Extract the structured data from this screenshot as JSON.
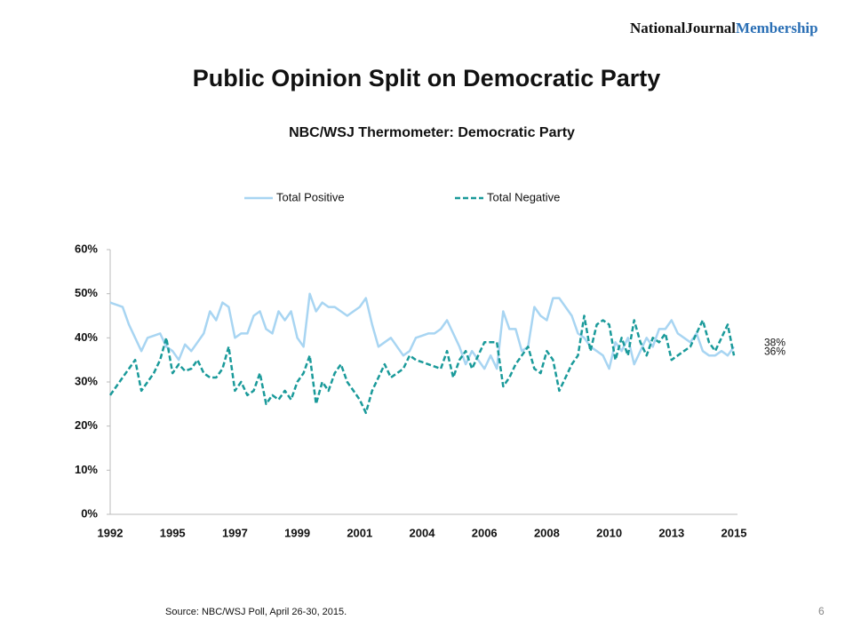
{
  "brand": {
    "name": "NationalJournal",
    "suffix": "Membership"
  },
  "slide_title": "Public Opinion Split on Democratic Party",
  "source": "Source: NBC/WSJ Poll, April 26-30, 2015.",
  "page_number": "6",
  "chart_data": {
    "type": "line",
    "title": "NBC/WSJ Thermometer: Democratic Party",
    "legend": "top",
    "categories": [
      "1992",
      null,
      null,
      null,
      null,
      null,
      null,
      null,
      null,
      null,
      "1995",
      null,
      null,
      null,
      null,
      null,
      null,
      null,
      null,
      null,
      "1997",
      null,
      null,
      null,
      null,
      null,
      null,
      null,
      null,
      null,
      "1999",
      null,
      null,
      null,
      null,
      null,
      null,
      null,
      null,
      null,
      "2001",
      null,
      null,
      null,
      null,
      null,
      null,
      null,
      null,
      null,
      "2004",
      null,
      null,
      null,
      null,
      null,
      null,
      null,
      null,
      null,
      "2006",
      null,
      null,
      null,
      null,
      null,
      null,
      null,
      null,
      null,
      "2008",
      null,
      null,
      null,
      null,
      null,
      null,
      null,
      null,
      null,
      "2010",
      null,
      null,
      null,
      null,
      null,
      null,
      null,
      null,
      null,
      "2013",
      null,
      null,
      null,
      null,
      null,
      null,
      null,
      null,
      null,
      "2015"
    ],
    "series": [
      {
        "name": "Total Positive",
        "color": "#a8d5f2",
        "dash": false,
        "values": [
          48,
          47.5,
          47,
          43,
          40,
          37,
          40,
          40.5,
          41,
          38,
          37,
          35,
          38.5,
          37,
          39,
          41,
          46,
          44,
          48,
          47,
          40,
          41,
          41,
          45,
          46,
          42,
          41,
          46,
          44,
          46,
          40,
          38,
          50,
          46,
          48,
          47,
          47,
          46,
          45,
          46,
          47,
          49,
          43,
          38,
          39,
          40,
          38,
          36,
          37,
          40,
          40.5,
          41,
          41,
          42,
          44,
          41,
          38,
          34,
          37,
          35,
          33,
          36,
          33,
          46,
          42,
          42,
          37,
          38,
          47,
          45,
          44,
          49,
          49,
          47,
          45,
          41,
          40,
          38,
          37,
          36,
          33,
          39,
          37,
          40,
          34,
          37,
          40,
          38,
          42,
          42,
          44,
          41,
          40,
          39,
          41,
          37,
          36,
          36,
          37,
          36,
          38
        ],
        "value_labels": [
          null,
          null,
          null,
          null,
          null,
          null,
          null,
          null,
          null,
          null,
          null,
          null,
          null,
          null,
          null,
          null,
          null,
          null,
          null,
          null,
          null,
          null,
          null,
          null,
          null,
          null,
          null,
          null,
          null,
          null,
          null,
          null,
          null,
          null,
          null,
          null,
          null,
          null,
          null,
          null,
          null,
          null,
          null,
          null,
          null,
          null,
          null,
          null,
          null,
          null,
          null,
          null,
          null,
          null,
          null,
          null,
          null,
          null,
          null,
          null,
          null,
          null,
          null,
          null,
          null,
          null,
          null,
          null,
          null,
          null,
          null,
          null,
          null,
          null,
          null,
          null,
          null,
          null,
          null,
          null,
          null,
          null,
          null,
          null,
          null,
          null,
          null,
          null,
          null,
          null,
          null,
          null,
          null,
          null,
          null,
          null,
          null,
          null,
          null,
          null,
          "38%"
        ]
      },
      {
        "name": "Total Negative",
        "color": "#1a9a9a",
        "dash": true,
        "values": [
          27,
          29,
          31,
          33,
          35,
          28,
          30,
          32,
          35,
          40,
          32,
          34,
          32.5,
          33,
          35,
          32,
          31,
          31,
          33,
          38,
          28,
          30,
          27,
          28,
          32,
          25,
          27,
          26,
          28,
          26,
          30,
          32,
          36,
          25,
          30,
          28,
          32,
          34,
          30,
          28,
          26,
          23,
          28,
          31,
          34,
          31,
          32,
          33,
          36,
          35,
          34.5,
          34,
          33.5,
          33,
          37,
          31,
          35,
          37,
          33,
          36,
          39,
          39,
          39,
          29,
          31,
          34,
          36,
          38,
          33,
          32,
          37,
          35,
          28,
          31,
          34,
          36,
          45,
          37,
          43,
          44,
          43,
          35,
          40,
          36,
          44,
          39,
          36,
          40,
          39,
          41,
          35,
          36,
          37,
          38,
          41,
          44,
          39,
          37,
          40,
          43,
          36
        ],
        "value_labels": [
          null,
          null,
          null,
          null,
          null,
          null,
          null,
          null,
          null,
          null,
          null,
          null,
          null,
          null,
          null,
          null,
          null,
          null,
          null,
          null,
          null,
          null,
          null,
          null,
          null,
          null,
          null,
          null,
          null,
          null,
          null,
          null,
          null,
          null,
          null,
          null,
          null,
          null,
          null,
          null,
          null,
          null,
          null,
          null,
          null,
          null,
          null,
          null,
          null,
          null,
          null,
          null,
          null,
          null,
          null,
          null,
          null,
          null,
          null,
          null,
          null,
          null,
          null,
          null,
          null,
          null,
          null,
          null,
          null,
          null,
          null,
          null,
          null,
          null,
          null,
          null,
          null,
          null,
          null,
          null,
          null,
          null,
          null,
          null,
          null,
          null,
          null,
          null,
          null,
          null,
          null,
          null,
          null,
          null,
          null,
          null,
          null,
          null,
          null,
          null,
          "36%"
        ]
      }
    ],
    "ylim": [
      0,
      60
    ],
    "yticks": [
      {
        "value": 0,
        "label": "0%"
      },
      {
        "value": 10,
        "label": "10%"
      },
      {
        "value": 20,
        "label": "20%"
      },
      {
        "value": 30,
        "label": "30%"
      },
      {
        "value": 40,
        "label": "40%"
      },
      {
        "value": 50,
        "label": "50%"
      },
      {
        "value": 60,
        "label": "60%"
      }
    ],
    "grid": false
  }
}
